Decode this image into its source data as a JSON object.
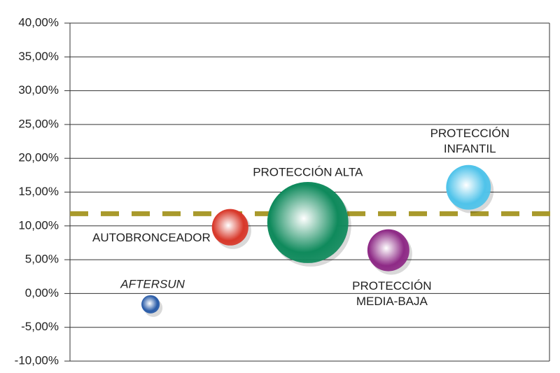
{
  "chart_data": {
    "type": "bubble",
    "ylim": [
      -10,
      40
    ],
    "yticks": [
      {
        "value": -10,
        "label": "-10,00%"
      },
      {
        "value": -5,
        "label": "-5,00%"
      },
      {
        "value": 0,
        "label": "0,00%"
      },
      {
        "value": 5,
        "label": "5,00%"
      },
      {
        "value": 10,
        "label": "10,00%"
      },
      {
        "value": 15,
        "label": "15,00%"
      },
      {
        "value": 20,
        "label": "20,00%"
      },
      {
        "value": 25,
        "label": "25,00%"
      },
      {
        "value": 30,
        "label": "30,00%"
      },
      {
        "value": 35,
        "label": "35,00%"
      },
      {
        "value": 40,
        "label": "40,00%"
      }
    ],
    "xlim": [
      0,
      100
    ],
    "grid": true,
    "reference_line": {
      "value": 11.8,
      "color": "#a99a2c"
    },
    "points": [
      {
        "label_lines": [
          "AFTERSUN"
        ],
        "x": 16.8,
        "y": -1.6,
        "size": 17,
        "color": "#2a5ca8"
      },
      {
        "label_lines": [
          "AUTOBRONCEADOR"
        ],
        "x": 33.4,
        "y": 9.8,
        "size": 68,
        "color": "#d8382a"
      },
      {
        "label_lines": [
          "PROTECCIÓN ALTA"
        ],
        "x": 49.6,
        "y": 10.5,
        "size": 336,
        "color": "#0f8a5c"
      },
      {
        "label_lines": [
          "PROTECCIÓN",
          "MEDIA-BAJA"
        ],
        "x": 66.4,
        "y": 6.4,
        "size": 90,
        "color": "#8e2a86"
      },
      {
        "label_lines": [
          "PROTECCIÓN",
          "INFANTIL"
        ],
        "x": 83.1,
        "y": 15.7,
        "size": 102,
        "color": "#4fc3ea"
      }
    ]
  }
}
